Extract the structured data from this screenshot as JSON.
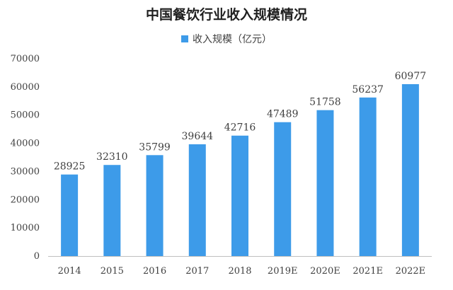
{
  "colors": {
    "bar": "#3d9be9",
    "axis": "#bfbfbf",
    "text": "#404040"
  },
  "chart_data": {
    "type": "bar",
    "title": "中国餐饮行业收入规模情况",
    "categories": [
      "2014",
      "2015",
      "2016",
      "2017",
      "2018",
      "2019E",
      "2020E",
      "2021E",
      "2022E"
    ],
    "series": [
      {
        "name": "收入规模（亿元）",
        "values": [
          28925,
          32310,
          35799,
          39644,
          42716,
          47489,
          51758,
          56237,
          60977
        ]
      }
    ],
    "y_ticks": [
      "0",
      "10000",
      "20000",
      "30000",
      "40000",
      "50000",
      "60000",
      "70000"
    ],
    "ylim": [
      0,
      70000
    ],
    "grid": false,
    "legend_position": "top"
  }
}
